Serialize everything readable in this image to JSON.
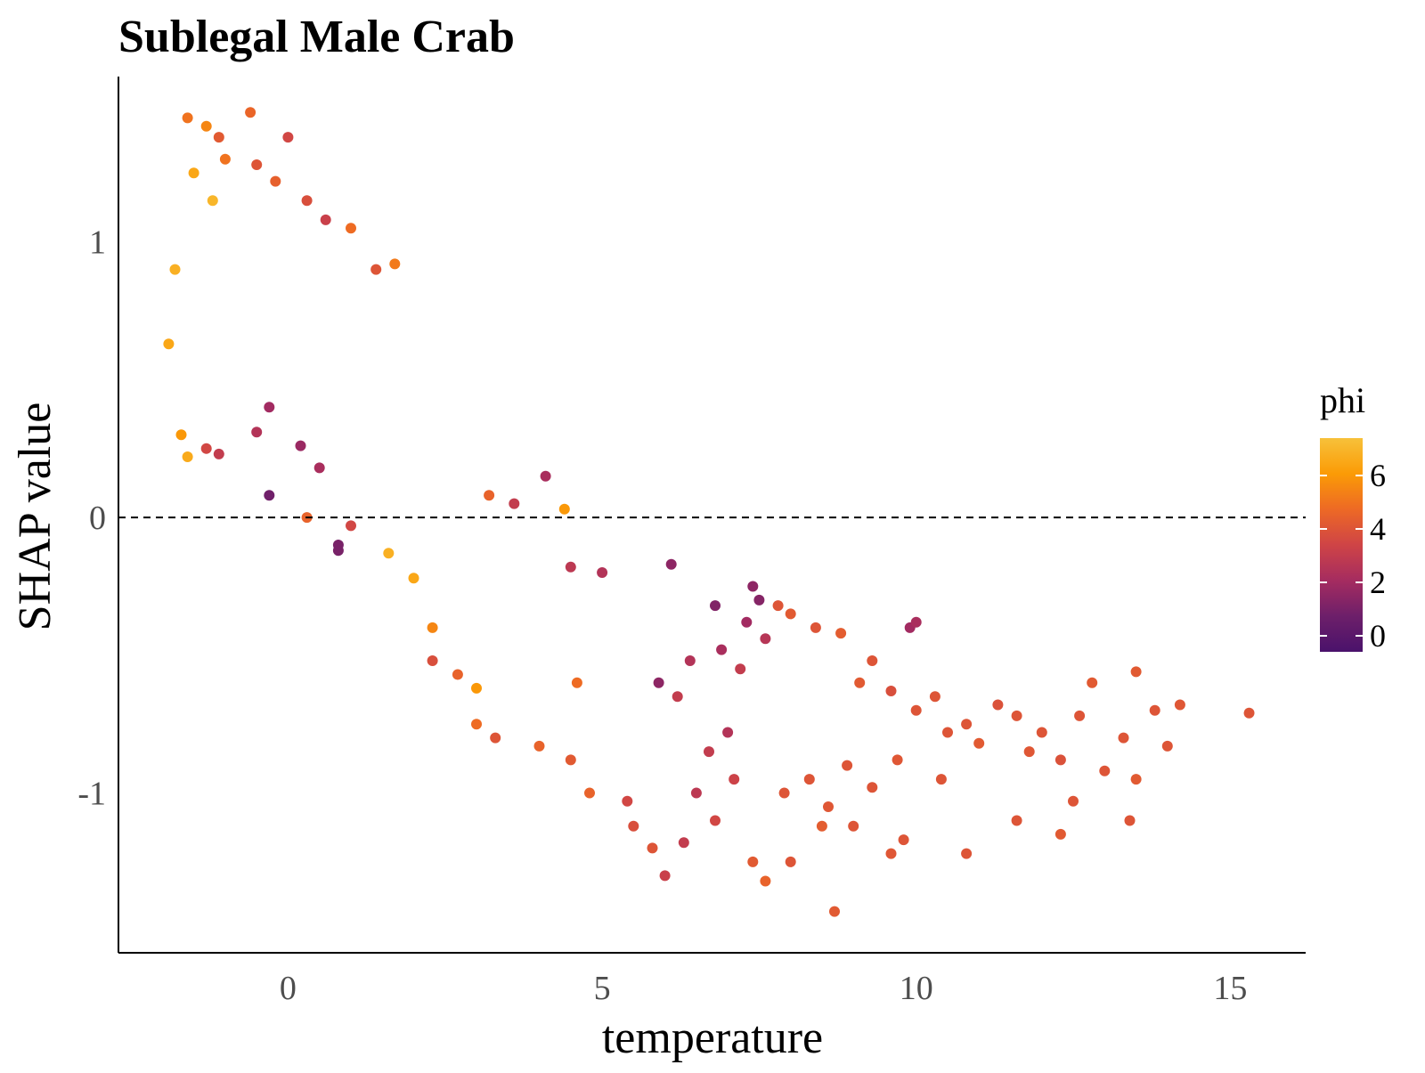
{
  "chart_data": {
    "type": "scatter",
    "title": "Sublegal Male Crab",
    "xlabel": "temperature",
    "ylabel": "SHAP value",
    "xlim": [
      -2.7,
      16.2
    ],
    "ylim": [
      -1.58,
      1.6
    ],
    "x_ticks": [
      {
        "value": 0,
        "label": "0"
      },
      {
        "value": 5,
        "label": "5"
      },
      {
        "value": 10,
        "label": "10"
      },
      {
        "value": 15,
        "label": "15"
      }
    ],
    "y_ticks": [
      {
        "value": 1,
        "label": "1"
      },
      {
        "value": 0,
        "label": "0"
      },
      {
        "value": -1,
        "label": "-1"
      }
    ],
    "reference_line": {
      "y": 0,
      "style": "dashed",
      "color": "#000000"
    },
    "grid": false,
    "color_scale": {
      "name": "phi",
      "palette": "inferno",
      "range": [
        -0.6,
        7.4
      ],
      "ticks": [
        {
          "value": 6,
          "label": "6"
        },
        {
          "value": 4,
          "label": "4"
        },
        {
          "value": 2,
          "label": "2"
        },
        {
          "value": 0,
          "label": "0"
        }
      ],
      "stops": [
        "#4a126b",
        "#6d1f6a",
        "#a52c60",
        "#cf4446",
        "#ed6925",
        "#fb9b06",
        "#f7c13a"
      ]
    },
    "legend_position": "right",
    "points": [
      [
        -1.6,
        1.45,
        5.0
      ],
      [
        -0.6,
        1.47,
        4.6
      ],
      [
        -1.3,
        1.42,
        5.5
      ],
      [
        -1.1,
        1.38,
        4.2
      ],
      [
        0.0,
        1.38,
        3.5
      ],
      [
        -1.0,
        1.3,
        5.0
      ],
      [
        -0.5,
        1.28,
        4.0
      ],
      [
        -0.2,
        1.22,
        4.4
      ],
      [
        0.3,
        1.15,
        3.8
      ],
      [
        0.6,
        1.08,
        3.2
      ],
      [
        1.0,
        1.05,
        4.8
      ],
      [
        1.4,
        0.9,
        4.0
      ],
      [
        1.7,
        0.92,
        5.2
      ],
      [
        -1.5,
        1.25,
        6.5
      ],
      [
        -1.2,
        1.15,
        7.0
      ],
      [
        -1.8,
        0.9,
        6.8
      ],
      [
        -1.9,
        0.63,
        6.5
      ],
      [
        -1.7,
        0.3,
        6.0
      ],
      [
        -1.6,
        0.22,
        6.6
      ],
      [
        -1.3,
        0.25,
        3.5
      ],
      [
        -1.1,
        0.23,
        3.0
      ],
      [
        -0.5,
        0.31,
        2.5
      ],
      [
        -0.3,
        0.4,
        2.0
      ],
      [
        0.2,
        0.26,
        1.8
      ],
      [
        0.5,
        0.18,
        2.2
      ],
      [
        -0.3,
        0.08,
        0.8
      ],
      [
        0.3,
        0.0,
        4.5
      ],
      [
        0.8,
        -0.1,
        1.0
      ],
      [
        1.0,
        -0.03,
        3.5
      ],
      [
        1.6,
        -0.13,
        6.8
      ],
      [
        2.0,
        -0.22,
        6.5
      ],
      [
        2.3,
        -0.4,
        5.5
      ],
      [
        2.3,
        -0.52,
        3.8
      ],
      [
        2.7,
        -0.57,
        4.5
      ],
      [
        3.0,
        -0.62,
        6.0
      ],
      [
        3.0,
        -0.75,
        4.8
      ],
      [
        3.3,
        -0.8,
        4.0
      ],
      [
        4.0,
        -0.83,
        4.5
      ],
      [
        4.5,
        -0.88,
        4.2
      ],
      [
        5.5,
        -1.12,
        3.8
      ],
      [
        5.8,
        -1.2,
        4.0
      ],
      [
        5.4,
        -1.03,
        3.5
      ],
      [
        4.8,
        -1.0,
        4.5
      ],
      [
        4.6,
        -0.6,
        4.8
      ],
      [
        4.1,
        0.15,
        2.2
      ],
      [
        4.4,
        0.03,
        6.0
      ],
      [
        3.2,
        0.08,
        4.5
      ],
      [
        3.6,
        0.05,
        3.0
      ],
      [
        6.1,
        -0.17,
        1.5
      ],
      [
        7.4,
        -0.25,
        1.5
      ],
      [
        7.8,
        -0.32,
        4.0
      ],
      [
        8.0,
        -0.35,
        4.2
      ],
      [
        7.5,
        -0.3,
        1.3
      ],
      [
        8.4,
        -0.4,
        4.0
      ],
      [
        8.8,
        -0.42,
        4.3
      ],
      [
        9.3,
        -0.52,
        4.0
      ],
      [
        9.1,
        -0.6,
        4.2
      ],
      [
        9.6,
        -0.63,
        3.8
      ],
      [
        9.9,
        -0.4,
        2.0
      ],
      [
        10.0,
        -0.38,
        2.2
      ],
      [
        10.3,
        -0.65,
        4.0
      ],
      [
        10.0,
        -0.7,
        4.0
      ],
      [
        10.5,
        -0.78,
        4.0
      ],
      [
        10.8,
        -0.75,
        4.0
      ],
      [
        11.0,
        -0.82,
        4.2
      ],
      [
        11.3,
        -0.68,
        3.9
      ],
      [
        11.6,
        -0.72,
        4.0
      ],
      [
        11.8,
        -0.85,
        4.1
      ],
      [
        12.0,
        -0.78,
        4.0
      ],
      [
        12.3,
        -0.88,
        3.9
      ],
      [
        12.6,
        -0.72,
        4.0
      ],
      [
        12.8,
        -0.6,
        4.2
      ],
      [
        13.0,
        -0.92,
        4.0
      ],
      [
        13.3,
        -0.8,
        4.0
      ],
      [
        13.5,
        -0.56,
        4.2
      ],
      [
        13.8,
        -0.7,
        4.0
      ],
      [
        14.0,
        -0.83,
        4.0
      ],
      [
        14.2,
        -0.68,
        4.1
      ],
      [
        15.3,
        -0.71,
        4.0
      ],
      [
        13.5,
        -0.95,
        4.2
      ],
      [
        12.5,
        -1.03,
        4.0
      ],
      [
        13.4,
        -1.1,
        4.0
      ],
      [
        12.3,
        -1.15,
        4.2
      ],
      [
        11.6,
        -1.1,
        4.0
      ],
      [
        10.8,
        -1.22,
        4.0
      ],
      [
        9.8,
        -1.17,
        4.0
      ],
      [
        9.6,
        -1.22,
        4.1
      ],
      [
        9.0,
        -1.12,
        4.0
      ],
      [
        8.7,
        -1.43,
        4.2
      ],
      [
        8.5,
        -1.12,
        4.3
      ],
      [
        8.0,
        -1.25,
        4.0
      ],
      [
        7.6,
        -1.32,
        4.5
      ],
      [
        7.4,
        -1.25,
        4.2
      ],
      [
        7.9,
        -1.0,
        4.0
      ],
      [
        8.3,
        -0.95,
        4.0
      ],
      [
        8.6,
        -1.05,
        4.1
      ],
      [
        8.9,
        -0.9,
        4.0
      ],
      [
        9.3,
        -0.98,
        4.0
      ],
      [
        9.7,
        -0.88,
        4.1
      ],
      [
        10.4,
        -0.95,
        4.0
      ],
      [
        6.8,
        -1.1,
        3.5
      ],
      [
        6.3,
        -1.18,
        3.0
      ],
      [
        6.0,
        -1.3,
        3.2
      ],
      [
        6.5,
        -1.0,
        2.8
      ],
      [
        7.1,
        -0.95,
        3.3
      ],
      [
        7.0,
        -0.78,
        2.5
      ],
      [
        6.7,
        -0.85,
        3.0
      ],
      [
        6.2,
        -0.65,
        3.0
      ],
      [
        6.4,
        -0.52,
        2.5
      ],
      [
        6.9,
        -0.48,
        2.2
      ],
      [
        7.2,
        -0.55,
        3.0
      ],
      [
        7.6,
        -0.44,
        2.6
      ],
      [
        7.3,
        -0.38,
        2.0
      ],
      [
        6.8,
        -0.32,
        1.2
      ],
      [
        5.9,
        -0.6,
        1.5
      ],
      [
        5.0,
        -0.2,
        2.5
      ],
      [
        4.5,
        -0.18,
        2.8
      ],
      [
        0.8,
        -0.12,
        1.0
      ]
    ]
  }
}
